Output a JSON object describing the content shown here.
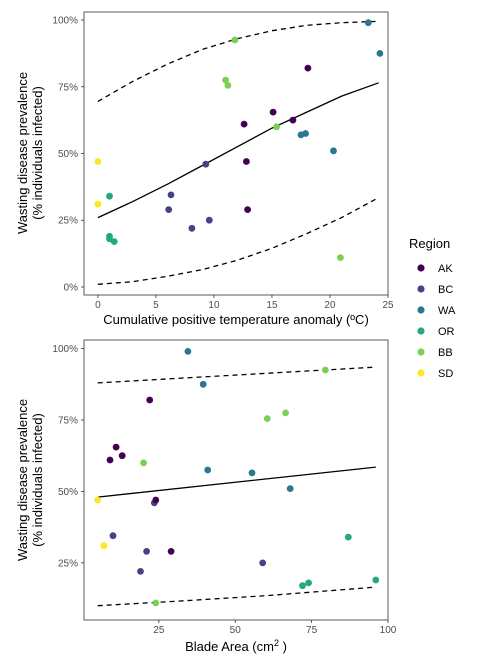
{
  "legend": {
    "title": "Region",
    "items": [
      {
        "label": "AK",
        "color": "#440154"
      },
      {
        "label": "BC",
        "color": "#414487"
      },
      {
        "label": "WA",
        "color": "#2a788e"
      },
      {
        "label": "OR",
        "color": "#22a884"
      },
      {
        "label": "BB",
        "color": "#7ad151"
      },
      {
        "label": "SD",
        "color": "#fde725"
      }
    ]
  },
  "chart_data": [
    {
      "type": "scatter",
      "xlabel": "Cumulative positive temperature anomaly (ºC)",
      "ylabel_line1": "Wasting disease prevalence",
      "ylabel_line2": "(% individuals infected)",
      "xlim": [
        -1.2,
        25
      ],
      "ylim": [
        -0.03,
        1.03
      ],
      "x_ticks": [
        0,
        5,
        10,
        15,
        20,
        25
      ],
      "x_tick_labels": [
        "0",
        "5",
        "10",
        "15",
        "20",
        "25"
      ],
      "y_ticks": [
        0,
        0.25,
        0.5,
        0.75,
        1
      ],
      "y_tick_labels": [
        "0%",
        "25%",
        "50%",
        "75%",
        "100%"
      ],
      "grid": false,
      "points": [
        {
          "region": "SD",
          "x": 0.0,
          "y": 0.47
        },
        {
          "region": "SD",
          "x": 0.0,
          "y": 0.31
        },
        {
          "region": "OR",
          "x": 1.0,
          "y": 0.34
        },
        {
          "region": "OR",
          "x": 1.0,
          "y": 0.19
        },
        {
          "region": "OR",
          "x": 1.0,
          "y": 0.18
        },
        {
          "region": "OR",
          "x": 1.4,
          "y": 0.17
        },
        {
          "region": "BC",
          "x": 6.1,
          "y": 0.29
        },
        {
          "region": "BC",
          "x": 6.3,
          "y": 0.345
        },
        {
          "region": "BC",
          "x": 8.1,
          "y": 0.22
        },
        {
          "region": "BC",
          "x": 9.3,
          "y": 0.46
        },
        {
          "region": "BC",
          "x": 9.6,
          "y": 0.25
        },
        {
          "region": "BB",
          "x": 11.0,
          "y": 0.775
        },
        {
          "region": "BB",
          "x": 11.2,
          "y": 0.755
        },
        {
          "region": "BB",
          "x": 11.8,
          "y": 0.925
        },
        {
          "region": "AK",
          "x": 12.6,
          "y": 0.61
        },
        {
          "region": "AK",
          "x": 12.8,
          "y": 0.47
        },
        {
          "region": "AK",
          "x": 12.9,
          "y": 0.29
        },
        {
          "region": "AK",
          "x": 15.1,
          "y": 0.655
        },
        {
          "region": "BB",
          "x": 15.4,
          "y": 0.6
        },
        {
          "region": "AK",
          "x": 16.8,
          "y": 0.625
        },
        {
          "region": "WA",
          "x": 17.5,
          "y": 0.57
        },
        {
          "region": "WA",
          "x": 17.9,
          "y": 0.575
        },
        {
          "region": "AK",
          "x": 18.1,
          "y": 0.82
        },
        {
          "region": "WA",
          "x": 20.3,
          "y": 0.51
        },
        {
          "region": "BB",
          "x": 20.9,
          "y": 0.11
        },
        {
          "region": "WA",
          "x": 23.3,
          "y": 0.99
        },
        {
          "region": "WA",
          "x": 24.3,
          "y": 0.875
        }
      ],
      "fit": {
        "x": [
          0,
          3,
          6,
          9,
          12,
          15,
          18,
          21,
          24.2
        ],
        "y": [
          0.26,
          0.32,
          0.385,
          0.455,
          0.525,
          0.595,
          0.655,
          0.715,
          0.765
        ]
      },
      "upper": {
        "x": [
          0,
          3,
          6,
          9,
          12,
          15,
          18,
          21,
          24.2
        ],
        "y": [
          0.695,
          0.77,
          0.835,
          0.89,
          0.93,
          0.96,
          0.98,
          0.99,
          0.995
        ]
      },
      "lower": {
        "x": [
          0,
          3,
          6,
          9,
          12,
          15,
          18,
          21,
          24.2
        ],
        "y": [
          0.01,
          0.02,
          0.04,
          0.065,
          0.1,
          0.145,
          0.2,
          0.26,
          0.335
        ]
      }
    },
    {
      "type": "scatter",
      "xlabel": "Blade Area (cm",
      "xlabel_sup": "2",
      "xlabel_end": " )",
      "ylabel_line1": "Wasting disease prevalence",
      "ylabel_line2": "(% individuals infected)",
      "xlim": [
        0.5,
        100
      ],
      "ylim": [
        0.05,
        1.03
      ],
      "x_ticks": [
        25,
        50,
        75,
        100
      ],
      "x_tick_labels": [
        "25",
        "50",
        "75",
        "100"
      ],
      "y_ticks": [
        0.25,
        0.5,
        0.75,
        1
      ],
      "y_tick_labels": [
        "25%",
        "50%",
        "75%",
        "100%"
      ],
      "grid": false,
      "points": [
        {
          "region": "SD",
          "x": 5.0,
          "y": 0.47
        },
        {
          "region": "SD",
          "x": 7.0,
          "y": 0.31
        },
        {
          "region": "AK",
          "x": 9.0,
          "y": 0.61
        },
        {
          "region": "AK",
          "x": 11.0,
          "y": 0.655
        },
        {
          "region": "AK",
          "x": 13.0,
          "y": 0.625
        },
        {
          "region": "BC",
          "x": 10.0,
          "y": 0.345
        },
        {
          "region": "BC",
          "x": 19.0,
          "y": 0.22
        },
        {
          "region": "BB",
          "x": 20.0,
          "y": 0.6
        },
        {
          "region": "BC",
          "x": 21.0,
          "y": 0.29
        },
        {
          "region": "AK",
          "x": 22.0,
          "y": 0.82
        },
        {
          "region": "BC",
          "x": 23.5,
          "y": 0.46
        },
        {
          "region": "AK",
          "x": 24.0,
          "y": 0.47
        },
        {
          "region": "BB",
          "x": 24.0,
          "y": 0.11
        },
        {
          "region": "AK",
          "x": 29.0,
          "y": 0.29
        },
        {
          "region": "WA",
          "x": 34.5,
          "y": 0.99
        },
        {
          "region": "WA",
          "x": 39.5,
          "y": 0.875
        },
        {
          "region": "WA",
          "x": 41.0,
          "y": 0.575
        },
        {
          "region": "WA",
          "x": 55.5,
          "y": 0.565
        },
        {
          "region": "BC",
          "x": 59.0,
          "y": 0.25
        },
        {
          "region": "BB",
          "x": 60.5,
          "y": 0.755
        },
        {
          "region": "BB",
          "x": 66.5,
          "y": 0.775
        },
        {
          "region": "WA",
          "x": 68.0,
          "y": 0.51
        },
        {
          "region": "OR",
          "x": 72.0,
          "y": 0.17
        },
        {
          "region": "OR",
          "x": 74.0,
          "y": 0.18
        },
        {
          "region": "BB",
          "x": 79.5,
          "y": 0.925
        },
        {
          "region": "OR",
          "x": 87.0,
          "y": 0.34
        },
        {
          "region": "OR",
          "x": 96.0,
          "y": 0.19
        }
      ],
      "fit": {
        "x": [
          5,
          96
        ],
        "y": [
          0.48,
          0.585
        ]
      },
      "upper": {
        "x": [
          5,
          96
        ],
        "y": [
          0.88,
          0.935
        ]
      },
      "lower": {
        "x": [
          5,
          30,
          60,
          96
        ],
        "y": [
          0.1,
          0.115,
          0.135,
          0.165
        ]
      }
    }
  ]
}
